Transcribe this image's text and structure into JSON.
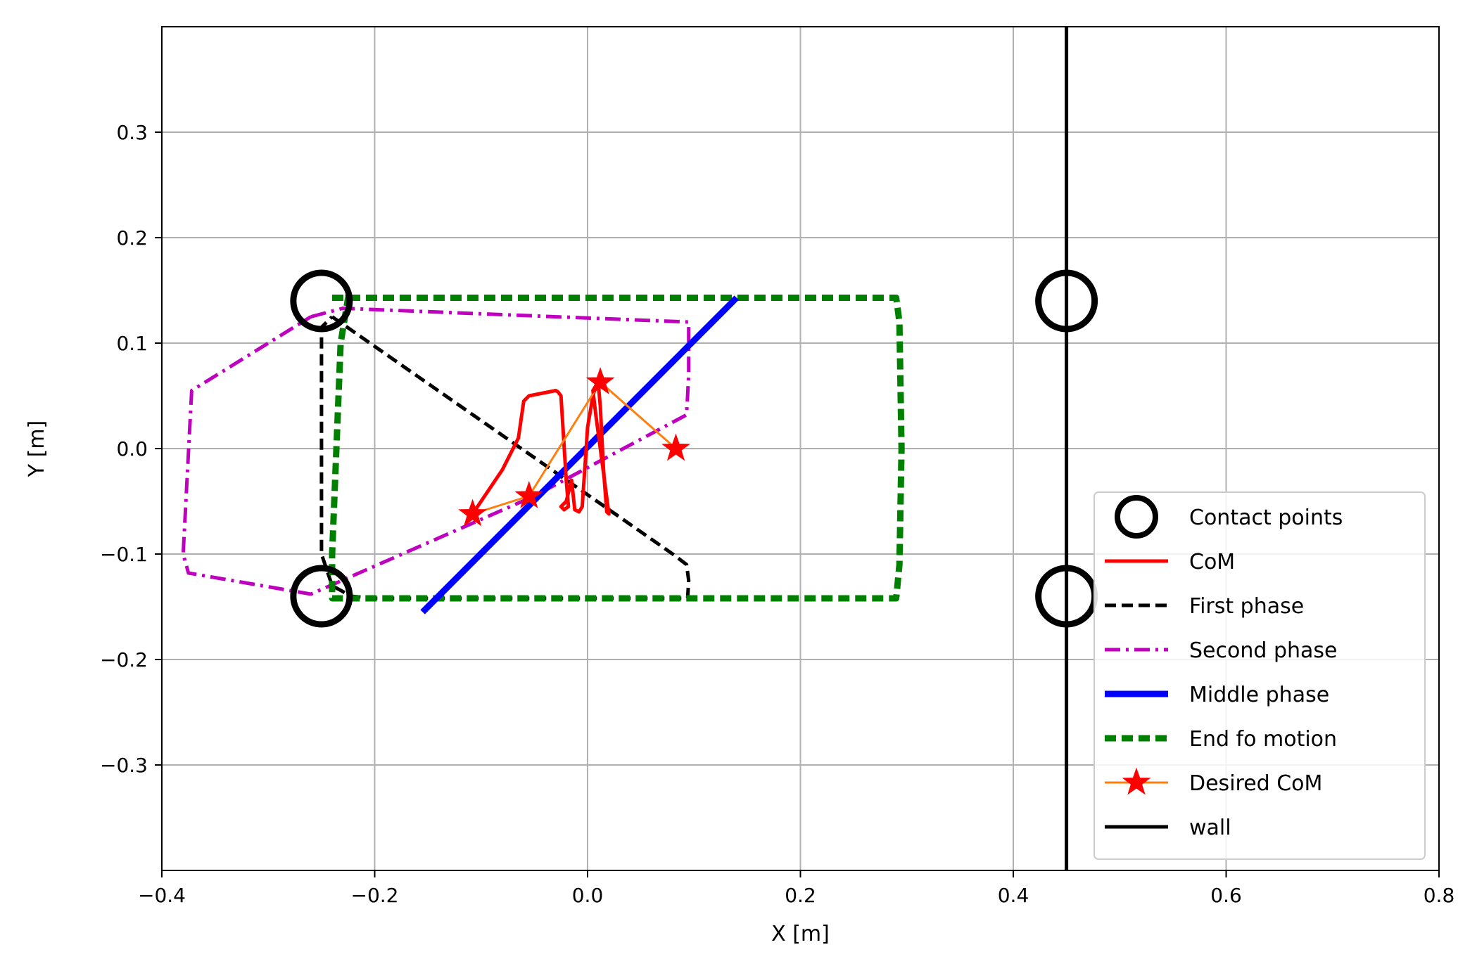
{
  "chart_data": {
    "type": "line",
    "title": "",
    "xlabel": "X [m]",
    "ylabel": "Y [m]",
    "xlim": [
      -0.4,
      0.8
    ],
    "ylim": [
      -0.4,
      0.4
    ],
    "xticks": [
      -0.4,
      -0.2,
      0.0,
      0.2,
      0.4,
      0.6,
      0.8
    ],
    "xtick_labels": [
      "−0.4",
      "−0.2",
      "0.0",
      "0.2",
      "0.4",
      "0.6",
      "0.8"
    ],
    "yticks": [
      -0.3,
      -0.2,
      -0.1,
      0.0,
      0.1,
      0.2,
      0.3
    ],
    "ytick_labels": [
      "−0.3",
      "−0.2",
      "−0.1",
      "0.0",
      "0.1",
      "0.2",
      "0.3"
    ],
    "grid": true,
    "legend_position": "lower-right",
    "series": [
      {
        "name": "Contact points",
        "kind": "circles",
        "color": "#000000",
        "x": [
          -0.25,
          -0.25,
          0.45,
          0.45
        ],
        "y": [
          0.14,
          -0.14,
          0.14,
          -0.14
        ]
      },
      {
        "name": "CoM",
        "kind": "line",
        "color": "#ff0000",
        "x": [
          -0.108,
          -0.08,
          -0.065,
          -0.06,
          -0.055,
          -0.045,
          -0.04,
          -0.035,
          -0.03,
          -0.028,
          -0.025,
          -0.02,
          -0.018,
          -0.022,
          -0.025,
          -0.02,
          -0.015,
          -0.012,
          -0.008,
          -0.005,
          -0.002,
          0.0,
          0.005,
          0.008,
          0.01,
          0.012,
          0.015,
          0.018,
          0.02,
          0.012,
          0.008,
          0.005,
          0.01,
          0.012
        ],
        "y": [
          -0.062,
          -0.02,
          0.01,
          0.045,
          0.05,
          0.052,
          0.053,
          0.054,
          0.055,
          0.054,
          0.05,
          -0.03,
          -0.055,
          -0.058,
          -0.055,
          -0.05,
          -0.03,
          -0.058,
          -0.06,
          -0.055,
          -0.01,
          0.02,
          0.05,
          0.06,
          0.063,
          0.04,
          -0.02,
          -0.06,
          -0.062,
          0.0,
          0.03,
          0.055,
          0.063,
          0.062
        ]
      },
      {
        "name": "First phase",
        "kind": "dashed",
        "color": "#000000",
        "x": [
          -0.24,
          0.08,
          0.093,
          0.095,
          0.094,
          -0.2,
          -0.222,
          -0.24,
          -0.25,
          -0.25,
          -0.24
        ],
        "y": [
          0.125,
          -0.1,
          -0.11,
          -0.125,
          -0.142,
          -0.142,
          -0.14,
          -0.13,
          -0.1,
          0.115,
          0.125
        ]
      },
      {
        "name": "Second phase",
        "kind": "dashdot",
        "color": "#bf00bf",
        "x": [
          -0.26,
          -0.23,
          0.095,
          0.095,
          0.093,
          -0.05,
          -0.26,
          -0.375,
          -0.38,
          -0.372,
          -0.26
        ],
        "y": [
          0.125,
          0.133,
          0.12,
          0.07,
          0.032,
          -0.045,
          -0.138,
          -0.118,
          -0.1,
          0.055,
          0.125
        ]
      },
      {
        "name": "Middle phase",
        "kind": "line",
        "color": "#0000ff",
        "x": [
          -0.155,
          0.14
        ],
        "y": [
          -0.155,
          0.143
        ]
      },
      {
        "name": "End fo motion",
        "kind": "dashed",
        "color": "#008000",
        "x": [
          -0.24,
          0.29,
          0.293,
          0.295,
          0.293,
          0.29,
          -0.24,
          -0.24,
          -0.24,
          -0.232,
          -0.225,
          -0.24
        ],
        "y": [
          0.143,
          0.143,
          0.12,
          0.0,
          -0.11,
          -0.142,
          -0.142,
          -0.13,
          -0.1,
          0.1,
          0.143,
          0.143
        ]
      },
      {
        "name": "Desired CoM",
        "kind": "line-star",
        "color": "#ff7f0e",
        "marker_color": "#ff0000",
        "x": [
          -0.108,
          -0.055,
          0.012,
          0.083
        ],
        "y": [
          -0.062,
          -0.045,
          0.063,
          0.0
        ]
      },
      {
        "name": "wall",
        "kind": "line",
        "color": "#000000",
        "x": [
          0.45,
          0.45
        ],
        "y": [
          -0.4,
          0.4
        ]
      }
    ]
  }
}
